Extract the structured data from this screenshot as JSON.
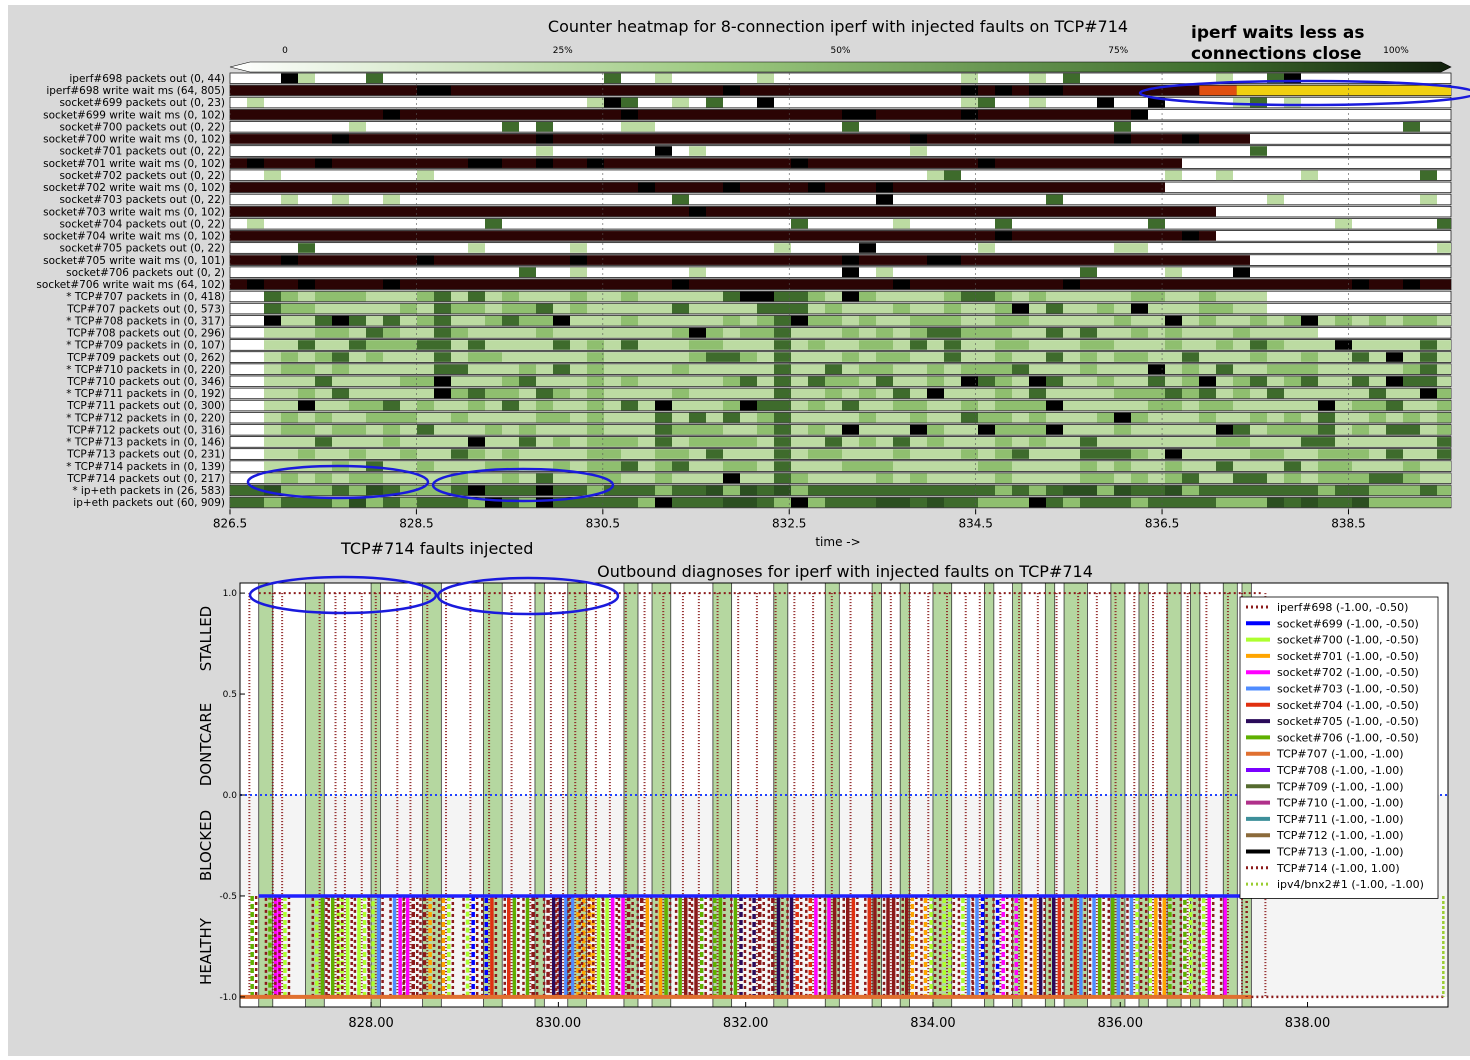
{
  "heatmap": {
    "title": "Counter heatmap for 8-connection iperf with injected faults on TCP#714",
    "xlabel": "time ->",
    "xlim": [
      826.5,
      839.6
    ],
    "xticks": [
      "826.5",
      "828.5",
      "830.5",
      "832.5",
      "834.5",
      "836.5",
      "838.5"
    ],
    "colorbar_ticks": [
      "0",
      "25%",
      "50%",
      "75%",
      "100%"
    ],
    "rows": [
      "iperf#698 packets out (0, 44)",
      "iperf#698 write wait ms (64, 805)",
      "socket#699 packets out (0, 23)",
      "socket#699 write wait ms (0, 102)",
      "socket#700 packets out (0, 22)",
      "socket#700 write wait ms (0, 102)",
      "socket#701 packets out (0, 22)",
      "socket#701 write wait ms (0, 102)",
      "socket#702 packets out (0, 22)",
      "socket#702 write wait ms (0, 102)",
      "socket#703 packets out (0, 22)",
      "socket#703 write wait ms (0, 102)",
      "socket#704 packets out (0, 22)",
      "socket#704 write wait ms (0, 102)",
      "socket#705 packets out (0, 22)",
      "socket#705 write wait ms (0, 101)",
      "socket#706 packets out (0, 2)",
      "socket#706 write wait ms (64, 102)",
      "* TCP#707 packets in (0, 418)",
      "TCP#707 packets out (0, 573)",
      "* TCP#708 packets in (0, 317)",
      "TCP#708 packets out (0, 296)",
      "* TCP#709 packets in (0, 107)",
      "TCP#709 packets out (0, 262)",
      "* TCP#710 packets in (0, 220)",
      "TCP#710 packets out (0, 346)",
      "* TCP#711 packets in (0, 192)",
      "TCP#711 packets out (0, 300)",
      "* TCP#712 packets in (0, 220)",
      "TCP#712 packets out (0, 316)",
      "* TCP#713 packets in (0, 146)",
      "TCP#713 packets out (0, 231)",
      "* TCP#714 packets in (0, 139)",
      "TCP#714 packets out (0, 217)",
      "* ip+eth packets in (26, 583)",
      "ip+eth packets out (60, 909)"
    ],
    "row_kind": [
      "pk",
      "ww",
      "pk",
      "ww",
      "pk",
      "ww",
      "pk",
      "ww",
      "pk",
      "ww",
      "pk",
      "ww",
      "pk",
      "ww",
      "pk",
      "ww",
      "pk",
      "ww",
      "tcp",
      "tcp",
      "tcp",
      "tcp",
      "tcp",
      "tcp",
      "tcp",
      "tcp",
      "tcp",
      "tcp",
      "tcp",
      "tcp",
      "tcp",
      "tcp",
      "tcp",
      "tcp",
      "ip",
      "ip"
    ],
    "row_end_time": [
      839.6,
      839.6,
      839.6,
      836.3,
      839.6,
      837.3,
      839.6,
      836.6,
      839.6,
      836.5,
      839.6,
      836.9,
      839.6,
      836.9,
      839.6,
      837.3,
      839.6,
      839.6,
      837.5,
      837.5,
      839.6,
      838.1,
      839.6,
      839.6,
      839.6,
      839.6,
      839.6,
      839.6,
      839.6,
      839.6,
      839.6,
      839.6,
      839.6,
      839.6,
      839.6,
      839.6
    ],
    "colors": {
      "dark_red": "#2b0404",
      "pale_green": "#bcdba2",
      "mid_green": "#8fbf6f",
      "dark_green": "#3e6b2c",
      "black": "#000000",
      "yellow": "#f0d010",
      "orange": "#e05010"
    },
    "annotations": {
      "waits": "iperf waits less as\nconnections close",
      "faults": "TCP#714 faults injected"
    }
  },
  "diagnoses": {
    "title": "Outbound diagnoses for iperf with injected faults on TCP#714",
    "xlim": [
      826.6,
      839.5
    ],
    "ylim": [
      -1.05,
      1.05
    ],
    "xticks": [
      "828.00",
      "830.00",
      "832.00",
      "834.00",
      "836.00",
      "838.00"
    ],
    "yticks": [
      "1.0",
      "0.5",
      "0.0",
      "-0.5",
      "-1.0"
    ],
    "zone_labels": [
      "STALLED",
      "DONTCARE",
      "BLOCKED",
      "HEALTHY"
    ],
    "legend": [
      {
        "label": "iperf#698 (-1.00, -0.50)",
        "color": "#8b1a1a",
        "dash": "dotted"
      },
      {
        "label": "socket#699 (-1.00, -0.50)",
        "color": "#0000ff",
        "dash": "solid"
      },
      {
        "label": "socket#700 (-1.00, -0.50)",
        "color": "#adff2f",
        "dash": "solid"
      },
      {
        "label": "socket#701 (-1.00, -0.50)",
        "color": "#ffa500",
        "dash": "solid"
      },
      {
        "label": "socket#702 (-1.00, -0.50)",
        "color": "#ff00ff",
        "dash": "solid"
      },
      {
        "label": "socket#703 (-1.00, -0.50)",
        "color": "#4f8cff",
        "dash": "solid"
      },
      {
        "label": "socket#704 (-1.00, -0.50)",
        "color": "#e03010",
        "dash": "solid"
      },
      {
        "label": "socket#705 (-1.00, -0.50)",
        "color": "#2a0a5a",
        "dash": "solid"
      },
      {
        "label": "socket#706 (-1.00, -0.50)",
        "color": "#5fb000",
        "dash": "solid"
      },
      {
        "label": "TCP#707 (-1.00, -1.00)",
        "color": "#e07030",
        "dash": "solid"
      },
      {
        "label": "TCP#708 (-1.00, -1.00)",
        "color": "#7b00ff",
        "dash": "solid"
      },
      {
        "label": "TCP#709 (-1.00, -1.00)",
        "color": "#556b2f",
        "dash": "solid"
      },
      {
        "label": "TCP#710 (-1.00, -1.00)",
        "color": "#b0308a",
        "dash": "solid"
      },
      {
        "label": "TCP#711 (-1.00, -1.00)",
        "color": "#3d8f9a",
        "dash": "solid"
      },
      {
        "label": "TCP#712 (-1.00, -1.00)",
        "color": "#8b6a3a",
        "dash": "solid"
      },
      {
        "label": "TCP#713 (-1.00, -1.00)",
        "color": "#000000",
        "dash": "solid"
      },
      {
        "label": "TCP#714 (-1.00, 1.00)",
        "color": "#8b1a1a",
        "dash": "dotted"
      },
      {
        "label": "ipv4/bnx2#1 (-1.00, -1.00)",
        "color": "#9acd32",
        "dash": "dotted"
      }
    ],
    "green_bands": [
      [
        826.8,
        826.95
      ],
      [
        827.3,
        827.5
      ],
      [
        828.0,
        828.1
      ],
      [
        828.55,
        828.75
      ],
      [
        829.2,
        829.4
      ],
      [
        829.75,
        829.85
      ],
      [
        830.1,
        830.3
      ],
      [
        830.7,
        830.85
      ],
      [
        831.0,
        831.2
      ],
      [
        831.65,
        831.85
      ],
      [
        832.3,
        832.45
      ],
      [
        832.85,
        833.0
      ],
      [
        833.35,
        833.45
      ],
      [
        833.65,
        833.75
      ],
      [
        834.0,
        834.2
      ],
      [
        834.55,
        834.65
      ],
      [
        834.85,
        834.95
      ],
      [
        835.2,
        835.3
      ],
      [
        835.4,
        835.65
      ],
      [
        835.9,
        836.05
      ],
      [
        836.2,
        836.3
      ],
      [
        836.5,
        836.65
      ],
      [
        836.75,
        836.85
      ],
      [
        837.1,
        837.25
      ],
      [
        837.3,
        837.4
      ]
    ],
    "stalled_times": [
      826.7,
      826.95,
      827.05,
      827.45,
      827.62,
      827.72,
      827.9,
      828.05,
      828.28,
      828.42,
      828.6,
      828.8,
      829.06,
      829.26,
      829.5,
      829.7,
      829.92,
      830.05,
      830.18,
      830.3,
      830.4,
      830.55,
      830.72,
      830.92,
      831.12,
      831.33,
      831.5,
      831.7,
      831.92,
      832.12,
      832.32,
      832.52,
      832.72,
      832.92,
      833.12,
      833.35,
      833.55,
      833.75,
      833.95,
      834.15,
      834.35,
      834.5,
      834.72,
      834.92,
      835.12,
      835.32,
      835.55,
      835.75,
      835.95,
      836.15,
      836.35,
      836.5,
      836.72,
      836.92,
      837.15,
      837.3,
      837.55
    ],
    "healthy_band": [
      826.8,
      839.5
    ]
  }
}
